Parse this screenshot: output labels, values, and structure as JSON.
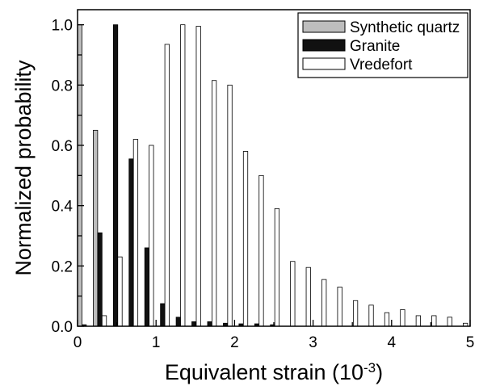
{
  "chart_data": {
    "type": "bar",
    "xlabel": "Equivalent strain (10",
    "xlabel_sup": "-3",
    "xlabel_end": ")",
    "ylabel": "Normalized probability",
    "xlim": [
      0,
      5
    ],
    "ylim": [
      0,
      1.05
    ],
    "xticks": [
      "0",
      "1",
      "2",
      "3",
      "4",
      "5"
    ],
    "yticks": [
      "0.0",
      "0.2",
      "0.4",
      "0.6",
      "0.8",
      "1.0"
    ],
    "legend_position": "top-right",
    "grid": false,
    "bin_width": 0.2,
    "bin_starts": [
      0,
      0.2,
      0.4,
      0.6,
      0.8,
      1.0,
      1.2,
      1.4,
      1.6,
      1.8,
      2.0,
      2.2,
      2.4,
      2.6,
      2.8,
      3.0,
      3.2,
      3.4,
      3.6,
      3.8,
      4.0,
      4.2,
      4.4,
      4.6,
      4.8
    ],
    "series": [
      {
        "name": "Synthetic quartz",
        "color": "#bdbdbd",
        "values": [
          1.0,
          0.65,
          0,
          0,
          0,
          0,
          0,
          0,
          0,
          0,
          0,
          0,
          0,
          0,
          0,
          0,
          0,
          0,
          0,
          0,
          0,
          0,
          0,
          0,
          0
        ]
      },
      {
        "name": "Granite",
        "color": "#111111",
        "values": [
          0.005,
          0.31,
          1.0,
          0.555,
          0.26,
          0.075,
          0.03,
          0.015,
          0.015,
          0.01,
          0.008,
          0.008,
          0.005,
          0,
          0,
          0,
          0,
          0,
          0,
          0,
          0,
          0,
          0,
          0,
          0
        ]
      },
      {
        "name": "Vredefort",
        "color": "#ffffff",
        "values": [
          0,
          0.035,
          0.23,
          0.62,
          0.6,
          0.935,
          1.0,
          0.995,
          0.815,
          0.8,
          0.58,
          0.5,
          0.39,
          0.215,
          0.195,
          0.155,
          0.13,
          0.085,
          0.07,
          0.045,
          0.055,
          0.035,
          0.035,
          0.03,
          0.01
        ]
      }
    ]
  }
}
